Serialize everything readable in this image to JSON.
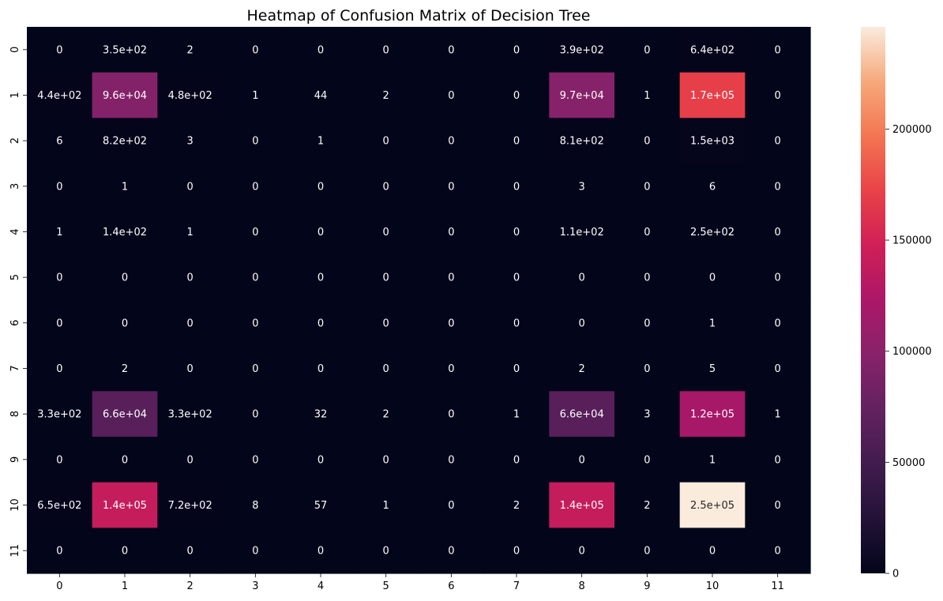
{
  "chart_data": {
    "type": "heatmap",
    "title": "Heatmap of Confusion Matrix of Decision Tree",
    "xlabel": "",
    "ylabel": "",
    "x_ticks": [
      "0",
      "1",
      "2",
      "3",
      "4",
      "5",
      "6",
      "7",
      "8",
      "9",
      "10",
      "11"
    ],
    "y_ticks": [
      "0",
      "1",
      "2",
      "3",
      "4",
      "5",
      "6",
      "7",
      "8",
      "9",
      "10",
      "11"
    ],
    "colormap": "rocket",
    "colorbar": {
      "min": 0,
      "max": 246000,
      "ticks": [
        0,
        50000,
        100000,
        150000,
        200000
      ],
      "tick_labels": [
        "0",
        "50000",
        "100000",
        "150000",
        "200000"
      ]
    },
    "values": [
      [
        0,
        350,
        2,
        0,
        0,
        0,
        0,
        0,
        390,
        0,
        640,
        0
      ],
      [
        440,
        96000,
        480,
        1,
        44,
        2,
        0,
        0,
        97000,
        1,
        170000,
        0
      ],
      [
        6,
        820,
        3,
        0,
        1,
        0,
        0,
        0,
        810,
        0,
        1500,
        0
      ],
      [
        0,
        1,
        0,
        0,
        0,
        0,
        0,
        0,
        3,
        0,
        6,
        0
      ],
      [
        1,
        140,
        1,
        0,
        0,
        0,
        0,
        0,
        110,
        0,
        250,
        0
      ],
      [
        0,
        0,
        0,
        0,
        0,
        0,
        0,
        0,
        0,
        0,
        0,
        0
      ],
      [
        0,
        0,
        0,
        0,
        0,
        0,
        0,
        0,
        0,
        0,
        1,
        0
      ],
      [
        0,
        2,
        0,
        0,
        0,
        0,
        0,
        0,
        2,
        0,
        5,
        0
      ],
      [
        330,
        66000,
        330,
        0,
        32,
        2,
        0,
        1,
        66000,
        3,
        120000,
        1
      ],
      [
        0,
        0,
        0,
        0,
        0,
        0,
        0,
        0,
        0,
        0,
        1,
        0
      ],
      [
        650,
        140000,
        720,
        8,
        57,
        1,
        0,
        2,
        140000,
        2,
        250000,
        0
      ],
      [
        0,
        0,
        0,
        0,
        0,
        0,
        0,
        0,
        0,
        0,
        0,
        0
      ]
    ],
    "annotations": [
      [
        "0",
        "3.5e+02",
        "2",
        "0",
        "0",
        "0",
        "0",
        "0",
        "3.9e+02",
        "0",
        "6.4e+02",
        "0"
      ],
      [
        "4.4e+02",
        "9.6e+04",
        "4.8e+02",
        "1",
        "44",
        "2",
        "0",
        "0",
        "9.7e+04",
        "1",
        "1.7e+05",
        "0"
      ],
      [
        "6",
        "8.2e+02",
        "3",
        "0",
        "1",
        "0",
        "0",
        "0",
        "8.1e+02",
        "0",
        "1.5e+03",
        "0"
      ],
      [
        "0",
        "1",
        "0",
        "0",
        "0",
        "0",
        "0",
        "0",
        "3",
        "0",
        "6",
        "0"
      ],
      [
        "1",
        "1.4e+02",
        "1",
        "0",
        "0",
        "0",
        "0",
        "0",
        "1.1e+02",
        "0",
        "2.5e+02",
        "0"
      ],
      [
        "0",
        "0",
        "0",
        "0",
        "0",
        "0",
        "0",
        "0",
        "0",
        "0",
        "0",
        "0"
      ],
      [
        "0",
        "0",
        "0",
        "0",
        "0",
        "0",
        "0",
        "0",
        "0",
        "0",
        "1",
        "0"
      ],
      [
        "0",
        "2",
        "0",
        "0",
        "0",
        "0",
        "0",
        "0",
        "2",
        "0",
        "5",
        "0"
      ],
      [
        "3.3e+02",
        "6.6e+04",
        "3.3e+02",
        "0",
        "32",
        "2",
        "0",
        "1",
        "6.6e+04",
        "3",
        "1.2e+05",
        "1"
      ],
      [
        "0",
        "0",
        "0",
        "0",
        "0",
        "0",
        "0",
        "0",
        "0",
        "0",
        "1",
        "0"
      ],
      [
        "6.5e+02",
        "1.4e+05",
        "7.2e+02",
        "8",
        "57",
        "1",
        "0",
        "2",
        "1.4e+05",
        "2",
        "2.5e+05",
        "0"
      ],
      [
        "0",
        "0",
        "0",
        "0",
        "0",
        "0",
        "0",
        "0",
        "0",
        "0",
        "0",
        "0"
      ]
    ]
  }
}
